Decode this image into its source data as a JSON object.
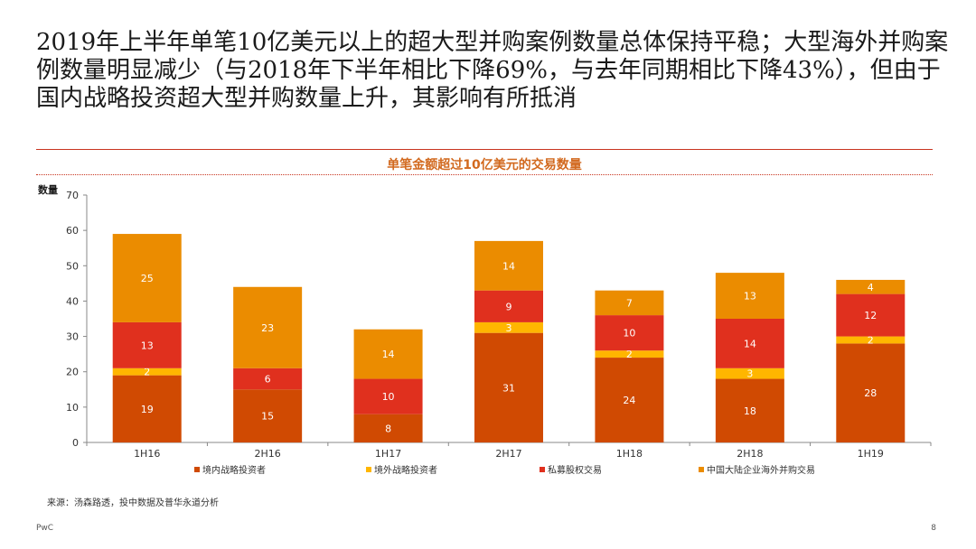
{
  "headline": "2019年上半年单笔10亿美元以上的超大型并购案例数量总体保持平稳；大型海外并购案例数量明显减少（与2018年下半年相比下降69%，与去年同期相比下降43%），但由于国内战略投资超大型并购数量上升，其影响有所抵消",
  "source": "来源：汤森路透，投中数据及普华永道分析",
  "footer": {
    "brand": "PwC",
    "page": "8"
  },
  "chart_data": {
    "type": "bar",
    "stacked": true,
    "title": "单笔金额超过10亿美元的交易数量",
    "ylabel": "数量",
    "xlabel": "",
    "ylim": [
      0,
      70
    ],
    "yticks": [
      0,
      10,
      20,
      30,
      40,
      50,
      60,
      70
    ],
    "categories": [
      "1H16",
      "2H16",
      "1H17",
      "2H17",
      "1H18",
      "2H18",
      "1H19"
    ],
    "legend_position": "bottom",
    "grid": false,
    "series": [
      {
        "name": "境内战略投资者",
        "color": "#d04a02",
        "values": [
          19,
          15,
          8,
          31,
          24,
          18,
          28
        ]
      },
      {
        "name": "境外战略投资者",
        "color": "#ffb600",
        "values": [
          2,
          0,
          0,
          3,
          2,
          3,
          2
        ]
      },
      {
        "name": "私募股权交易",
        "color": "#e0301e",
        "values": [
          13,
          6,
          10,
          9,
          10,
          14,
          12
        ]
      },
      {
        "name": "中国大陆企业海外并购交易",
        "color": "#eb8c00",
        "values": [
          25,
          23,
          14,
          14,
          7,
          13,
          4
        ]
      }
    ]
  }
}
